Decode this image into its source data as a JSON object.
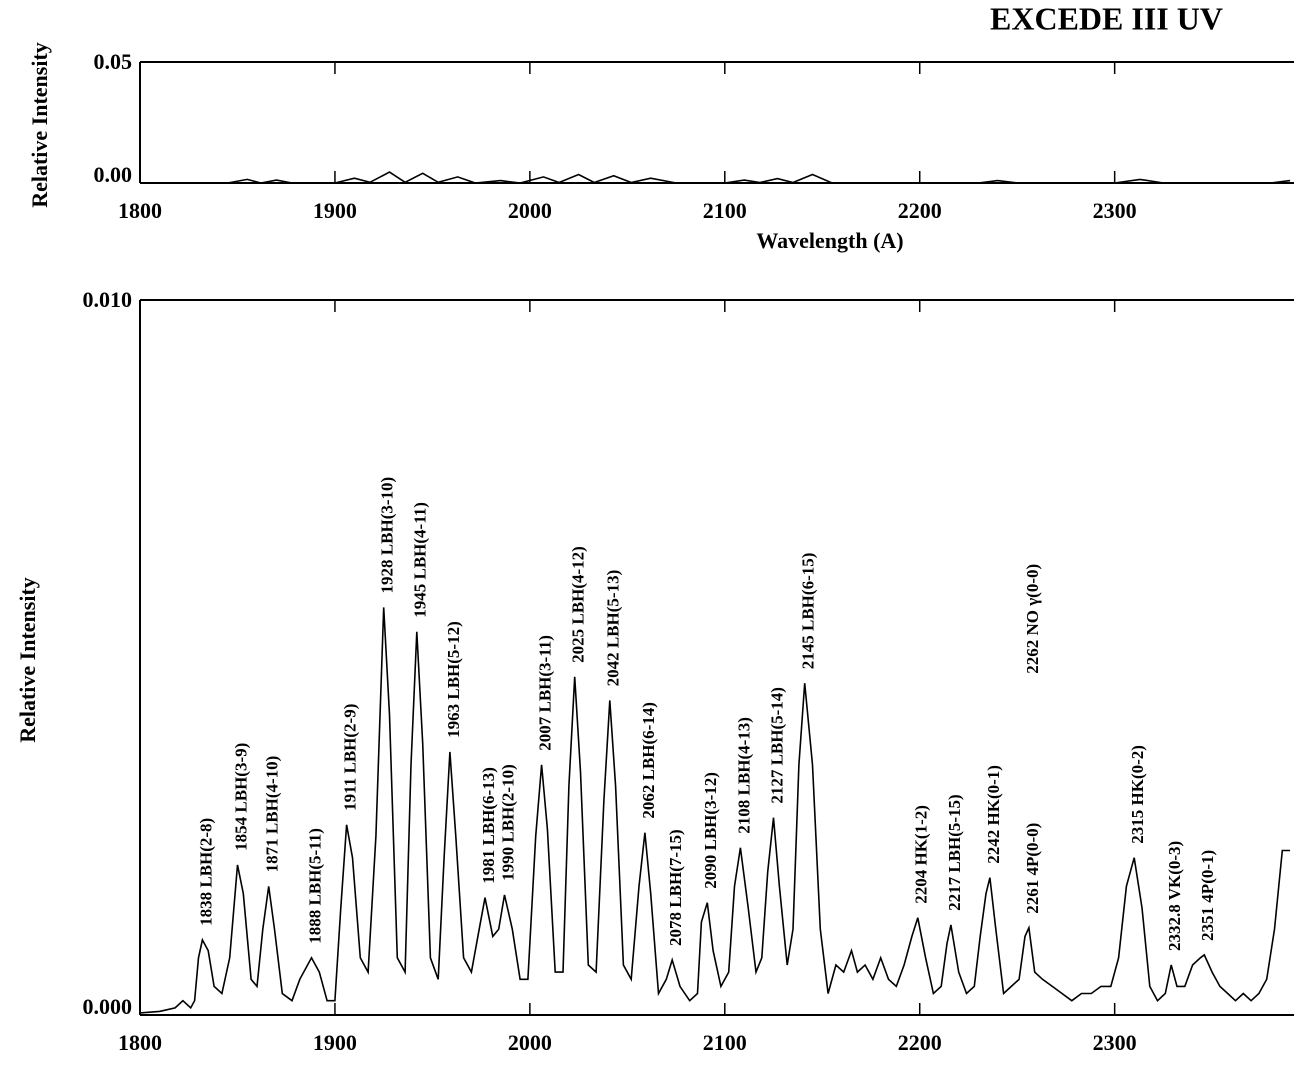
{
  "chart_data": [
    {
      "type": "line",
      "title": "EXCEDE III UV",
      "xlabel": "Wavelength (A)",
      "ylabel": "Relative Intensity",
      "xlim": [
        1800,
        2392
      ],
      "ylim": [
        0,
        0.05
      ],
      "xticks": [
        1800,
        1900,
        2000,
        2100,
        2200,
        2300
      ],
      "yticks": [
        {
          "value": 0,
          "label": "0.00"
        },
        0.05
      ],
      "grid": false,
      "color": "#000000",
      "x": [
        1800,
        1845,
        1855,
        1862,
        1870,
        1878,
        1900,
        1910,
        1918,
        1928,
        1936,
        1945,
        1953,
        1963,
        1972,
        1985,
        1995,
        2007,
        2015,
        2025,
        2033,
        2043,
        2052,
        2062,
        2075,
        2100,
        2110,
        2118,
        2127,
        2135,
        2145,
        2155,
        2200,
        2230,
        2240,
        2250,
        2300,
        2313,
        2325,
        2380,
        2390
      ],
      "values": [
        0,
        0,
        0.0015,
        0,
        0.0012,
        0,
        0,
        0.002,
        0.0003,
        0.0045,
        0.0003,
        0.004,
        0.0003,
        0.0025,
        0,
        0.001,
        0,
        0.0025,
        0.0002,
        0.0035,
        0.0002,
        0.003,
        0.0002,
        0.002,
        0,
        0,
        0.0012,
        0.0002,
        0.0018,
        0.0002,
        0.0035,
        0,
        0,
        0,
        0.001,
        0,
        0,
        0.0015,
        0,
        0,
        0.001
      ]
    },
    {
      "type": "line",
      "ylabel": "Relative Intensity",
      "xlim": [
        1800,
        2392
      ],
      "ylim": [
        0,
        0.01
      ],
      "xticks": [
        1800,
        1900,
        2000,
        2100,
        2200,
        2300
      ],
      "yticks": [
        {
          "value": 0,
          "label": "0.000"
        },
        {
          "value": 0.01,
          "label": "0.010"
        }
      ],
      "grid": false,
      "color": "#000000",
      "x": [
        1800,
        1810,
        1818,
        1822,
        1826,
        1828,
        1830,
        1832,
        1835,
        1838,
        1842,
        1846,
        1850,
        1853,
        1857,
        1860,
        1863,
        1866,
        1869,
        1873,
        1878,
        1882,
        1888,
        1892,
        1896,
        1900,
        1903,
        1906,
        1909,
        1913,
        1917,
        1921,
        1925,
        1928,
        1932,
        1936,
        1939,
        1942,
        1945,
        1949,
        1953,
        1956,
        1959,
        1962,
        1966,
        1970,
        1974,
        1977,
        1981,
        1984,
        1987,
        1991,
        1995,
        1999,
        2003,
        2006,
        2009,
        2013,
        2017,
        2020,
        2023,
        2026,
        2030,
        2034,
        2038,
        2041,
        2044,
        2048,
        2052,
        2056,
        2059,
        2062,
        2066,
        2070,
        2073,
        2077,
        2082,
        2086,
        2088,
        2091,
        2094,
        2098,
        2102,
        2105,
        2108,
        2112,
        2116,
        2119,
        2122,
        2125,
        2128,
        2132,
        2135,
        2138,
        2141,
        2145,
        2149,
        2153,
        2157,
        2161,
        2165,
        2168,
        2172,
        2176,
        2180,
        2184,
        2188,
        2192,
        2196,
        2199,
        2203,
        2207,
        2211,
        2214,
        2216,
        2220,
        2224,
        2228,
        2231,
        2234,
        2236,
        2239,
        2243,
        2247,
        2251,
        2254,
        2256,
        2259,
        2263,
        2268,
        2273,
        2278,
        2283,
        2288,
        2293,
        2298,
        2302,
        2306,
        2310,
        2314,
        2318,
        2322,
        2326,
        2329,
        2332,
        2336,
        2340,
        2344,
        2346,
        2350,
        2354,
        2358,
        2362,
        2366,
        2370,
        2374,
        2378,
        2382,
        2386,
        2390
      ],
      "values": [
        3e-05,
        5e-05,
        0.0001,
        0.0002,
        0.0001,
        0.0002,
        0.0008,
        0.00105,
        0.0009,
        0.0004,
        0.0003,
        0.0008,
        0.0021,
        0.0017,
        0.0005,
        0.0004,
        0.0012,
        0.0018,
        0.0012,
        0.0003,
        0.0002,
        0.0005,
        0.0008,
        0.0006,
        0.0002,
        0.0002,
        0.0015,
        0.00266,
        0.0022,
        0.0008,
        0.0006,
        0.0025,
        0.0057,
        0.0042,
        0.0008,
        0.0006,
        0.0035,
        0.00536,
        0.0038,
        0.0008,
        0.0005,
        0.0022,
        0.00368,
        0.0025,
        0.0008,
        0.0006,
        0.0012,
        0.00164,
        0.0011,
        0.0012,
        0.00168,
        0.0012,
        0.0005,
        0.0005,
        0.0025,
        0.0035,
        0.0026,
        0.0006,
        0.0006,
        0.0032,
        0.00473,
        0.0034,
        0.0007,
        0.0006,
        0.003,
        0.0044,
        0.0032,
        0.0007,
        0.0005,
        0.0018,
        0.00255,
        0.0017,
        0.0003,
        0.0005,
        0.00077,
        0.0004,
        0.0002,
        0.0003,
        0.0013,
        0.00157,
        0.0009,
        0.0004,
        0.0006,
        0.0018,
        0.00234,
        0.0015,
        0.0006,
        0.0008,
        0.002,
        0.00276,
        0.0018,
        0.0007,
        0.0012,
        0.0035,
        0.00464,
        0.0035,
        0.0012,
        0.0003,
        0.0007,
        0.0006,
        0.0009,
        0.0006,
        0.0007,
        0.0005,
        0.0008,
        0.0005,
        0.0004,
        0.0007,
        0.0011,
        0.00136,
        0.0008,
        0.0003,
        0.0004,
        0.001,
        0.00126,
        0.0006,
        0.0003,
        0.0004,
        0.0011,
        0.0017,
        0.00192,
        0.0012,
        0.0003,
        0.0004,
        0.0005,
        0.0011,
        0.00122,
        0.0006,
        0.0005,
        0.0004,
        0.0003,
        0.0002,
        0.0003,
        0.0003,
        0.0004,
        0.0004,
        0.0008,
        0.0018,
        0.0022,
        0.0015,
        0.0004,
        0.0002,
        0.0003,
        0.0007,
        0.0004,
        0.0004,
        0.0007,
        0.0008,
        0.00084,
        0.0006,
        0.0004,
        0.0003,
        0.0002,
        0.0003,
        0.0002,
        0.0003,
        0.0005,
        0.0012,
        0.0023,
        0.0023
      ],
      "annotations": [
        "1838 LBH(2-8)",
        "1854 LBH(3-9)",
        "1871 LBH(4-10)",
        "1888 LBH(5-11)",
        "1911 LBH(2-9)",
        "1928 LBH(3-10)",
        "1945 LBH(4-11)",
        "1963 LBH(5-12)",
        "1981 LBH(6-13)",
        "1990 LBH(2-10)",
        "2007 LBH(3-11)",
        "2025 LBH(4-12)",
        "2042 LBH(5-13)",
        "2062 LBH(6-14)",
        "2078 LBH(7-15)",
        "2090 LBH(3-12)",
        "2108 LBH(4-13)",
        "2127 LBH(5-14)",
        "2145 LBH(6-15)",
        "2204 HK(1-2)",
        "2217 LBH(5-15)",
        "2242 HK(0-1)",
        "2261 4P(0-0)",
        "2262 NO γ(0-0)",
        "2315 HK(0-2)",
        "2332.8 VK(0-3)",
        "2351 4P(0-1)"
      ]
    }
  ]
}
